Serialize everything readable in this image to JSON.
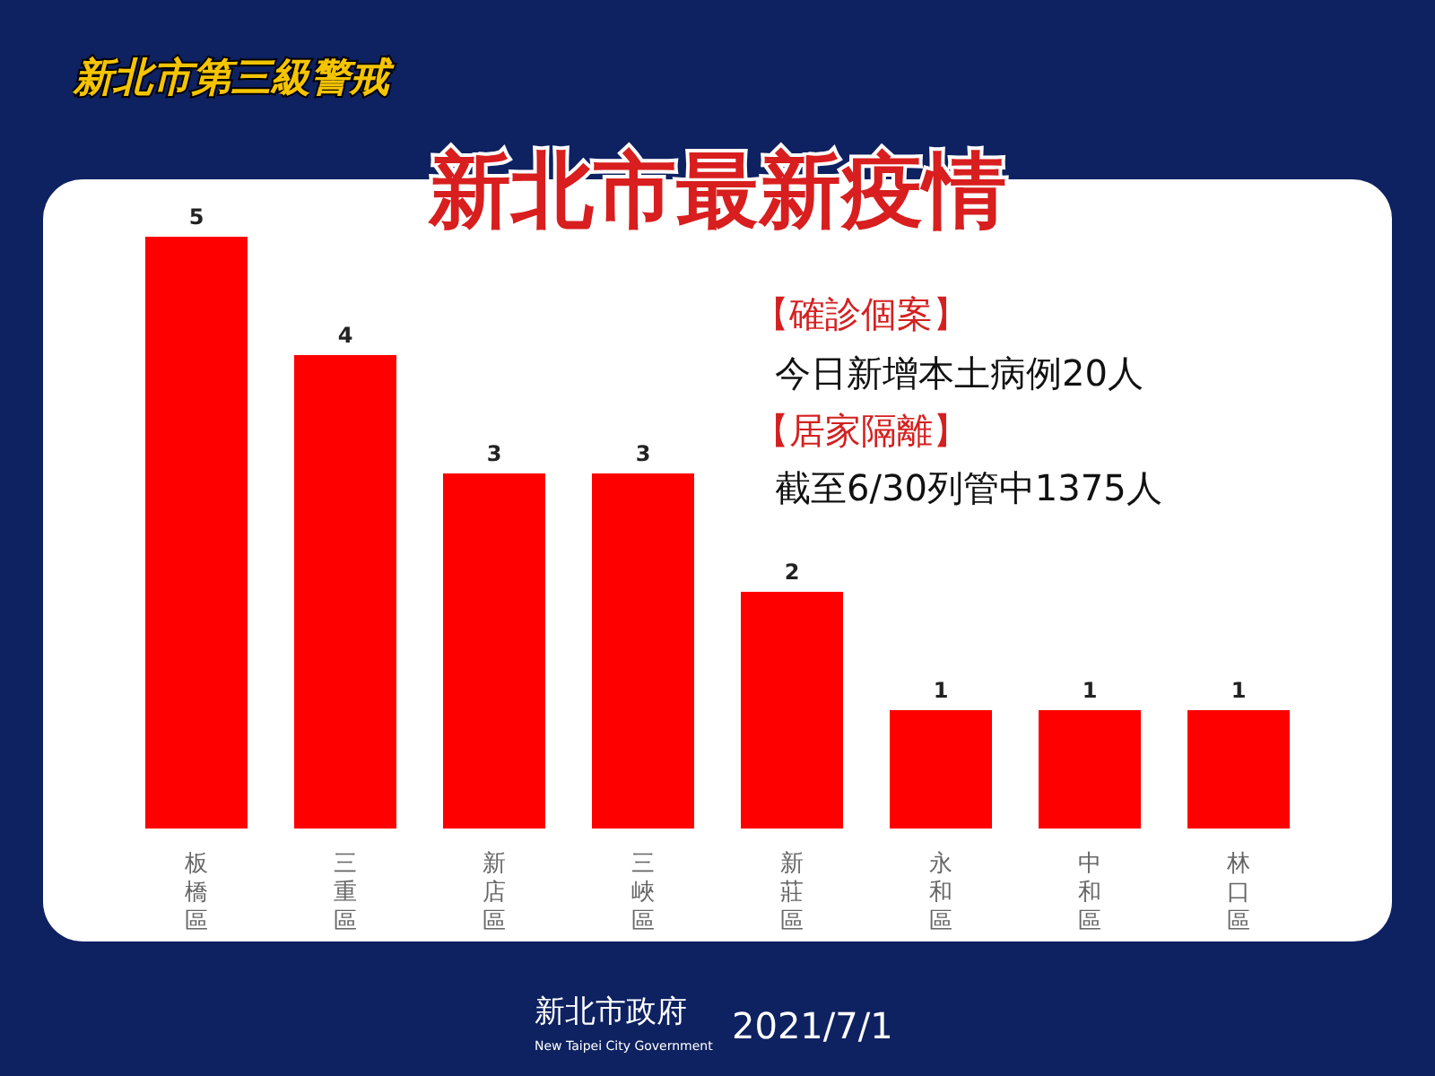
{
  "chart_data": {
    "type": "bar",
    "title": "新北市最新疫情",
    "subtitle": "新北市第三級警戒",
    "categories": [
      "板橋區",
      "三重區",
      "新店區",
      "三峽區",
      "新莊區",
      "永和區",
      "中和區",
      "林口區"
    ],
    "values": [
      5,
      4,
      3,
      3,
      2,
      1,
      1,
      1
    ],
    "color": "#ff0000",
    "data_labels": true,
    "annotations": [
      "【確診個案】",
      "今日新增本土病例20人",
      "【居家隔離】",
      "截至6/30列管中1375人",
      "新北市政府",
      "New Taipei City Government",
      "2021/7/1"
    ]
  }
}
